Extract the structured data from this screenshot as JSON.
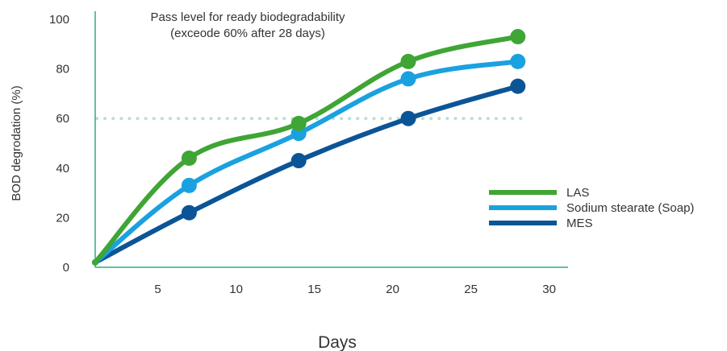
{
  "chart_data": {
    "type": "line",
    "xlabel": "Days",
    "ylabel": "BOD degrodation (%)",
    "xlim": [
      1.5,
      31
    ],
    "ylim": [
      0,
      100
    ],
    "xticks": [
      5,
      10,
      15,
      20,
      25,
      30
    ],
    "yticks": [
      0,
      20,
      40,
      60,
      80,
      100
    ],
    "x": [
      1,
      7,
      14,
      21,
      28
    ],
    "series": [
      {
        "name": "LAS",
        "color": "#3fa535",
        "values": [
          2,
          44,
          58,
          83,
          93
        ]
      },
      {
        "name": "Sodium stearate (Soap)",
        "color": "#1aa1e0",
        "values": [
          2,
          33,
          54,
          76,
          83
        ]
      },
      {
        "name": "MES",
        "color": "#0b5596",
        "values": [
          2,
          22,
          43,
          60,
          73
        ]
      }
    ],
    "reference_line": {
      "y": 60,
      "color": "#b7e3d2",
      "style": "dotted"
    },
    "annotation": [
      "Pass level for ready biodegradability",
      "(exceode 60% after 28 days)"
    ],
    "axis_color": "#2bab8c",
    "grid": false,
    "legend": "right"
  }
}
